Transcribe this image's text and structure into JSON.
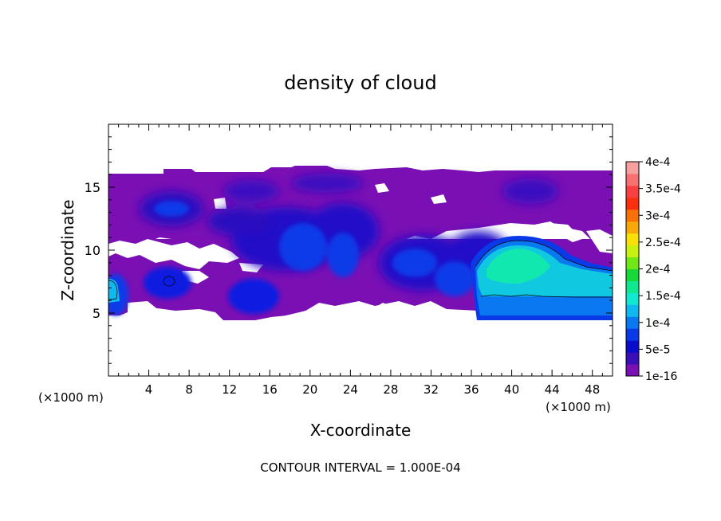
{
  "chart_data": {
    "type": "heatmap",
    "subtype": "filled-contour",
    "title": "density of cloud",
    "xlabel": "X-coordinate",
    "ylabel": "Z-coordinate",
    "x_unit_label_left": "(×1000 m)",
    "x_unit_label_right": "(×1000 m)",
    "xlim": [
      0,
      50
    ],
    "ylim": [
      0,
      20
    ],
    "x_ticks": [
      4,
      8,
      12,
      16,
      20,
      24,
      28,
      32,
      36,
      40,
      44,
      48
    ],
    "y_ticks": [
      5,
      10,
      15
    ],
    "footer": "CONTOUR INTERVAL = 1.000E-04",
    "colorbar": {
      "labels": [
        "1e-16",
        "5e-5",
        "1e-4",
        "1.5e-4",
        "2e-4",
        "2.5e-4",
        "3e-4",
        "3.5e-4",
        "4e-4"
      ],
      "range": [
        0,
        0.0004
      ],
      "colors": [
        "#7a0fb4",
        "#3a0fb8",
        "#0a0ccc",
        "#0a3ae8",
        "#0a78f0",
        "#10b8f0",
        "#10e8d0",
        "#10e890",
        "#18d838",
        "#70e818",
        "#c8f010",
        "#f8e008",
        "#f8a808",
        "#f87008",
        "#f83010",
        "#f84040",
        "#f87070",
        "#f8a0a0"
      ]
    },
    "cloud_regions": [
      {
        "x": [
          0,
          50
        ],
        "z": [
          4.5,
          16
        ],
        "value_level": 1e-08
      },
      {
        "x": [
          0.5,
          2.5
        ],
        "z": [
          5.5,
          8
        ],
        "value_level": 0.00012
      },
      {
        "x": [
          4,
          8
        ],
        "z": [
          6.5,
          8.5
        ],
        "value_level": 7e-05
      },
      {
        "x": [
          12,
          17
        ],
        "z": [
          5,
          8
        ],
        "value_level": 7e-05
      },
      {
        "x": [
          16,
          26
        ],
        "z": [
          6.5,
          13
        ],
        "value_level": 6e-05
      },
      {
        "x": [
          4,
          10
        ],
        "z": [
          12,
          14.5
        ],
        "value_level": 6e-05
      },
      {
        "x": [
          27,
          36
        ],
        "z": [
          6,
          11
        ],
        "value_level": 7e-05
      },
      {
        "x": [
          36.5,
          50
        ],
        "z": [
          5.5,
          10.5
        ],
        "value_level": 0.00018
      },
      {
        "x": [
          38,
          46
        ],
        "z": [
          7,
          10.5
        ],
        "value_level": 0.0002
      }
    ]
  }
}
